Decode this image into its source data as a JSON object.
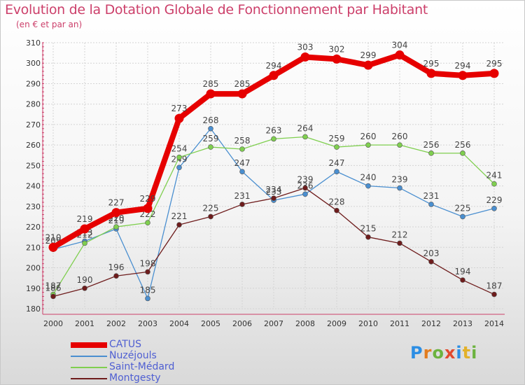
{
  "header": {
    "title": "Evolution de la Dotation Globale de Fonctionnement par Habitant",
    "subtitle": "(en € et par an)"
  },
  "chart_data": {
    "type": "line",
    "x": [
      "2000",
      "2001",
      "2002",
      "2003",
      "2004",
      "2005",
      "2006",
      "2007",
      "2008",
      "2009",
      "2010",
      "2011",
      "2012",
      "2013",
      "2014"
    ],
    "ylim": [
      180,
      310
    ],
    "yticks": [
      180,
      190,
      200,
      210,
      220,
      230,
      240,
      250,
      260,
      270,
      280,
      290,
      300,
      310
    ],
    "grid": true,
    "legend_position": "bottom-left",
    "series": [
      {
        "name": "CATUS",
        "color": "#e60000",
        "width": 8,
        "values": [
          210,
          219,
          227,
          229,
          273,
          285,
          285,
          294,
          303,
          302,
          299,
          304,
          295,
          294,
          295
        ]
      },
      {
        "name": "Nuzéjouls",
        "color": "#4a8fd0",
        "width": 1.3,
        "values": [
          209,
          213,
          219,
          185,
          249,
          268,
          247,
          233,
          236,
          247,
          240,
          239,
          231,
          225,
          229
        ]
      },
      {
        "name": "Saint-Médard",
        "color": "#7fcf4f",
        "width": 1.3,
        "values": [
          187,
          212,
          220,
          222,
          254,
          259,
          258,
          263,
          264,
          259,
          260,
          260,
          256,
          256,
          241
        ]
      },
      {
        "name": "Montgesty",
        "color": "#6e1c1c",
        "width": 1.3,
        "values": [
          186,
          190,
          196,
          198,
          221,
          225,
          231,
          234,
          239,
          228,
          215,
          212,
          203,
          194,
          187
        ]
      }
    ]
  },
  "legend": {
    "items": [
      {
        "label": "CATUS",
        "color": "#e60000",
        "height": 8
      },
      {
        "label": "Nuzéjouls",
        "color": "#4a8fd0",
        "height": 2
      },
      {
        "label": "Saint-Médard",
        "color": "#7fcf4f",
        "height": 2
      },
      {
        "label": "Montgesty",
        "color": "#6e1c1c",
        "height": 2
      }
    ]
  },
  "logo": {
    "parts": [
      "P",
      "r",
      "o",
      "x",
      "i",
      "t",
      "i"
    ]
  }
}
